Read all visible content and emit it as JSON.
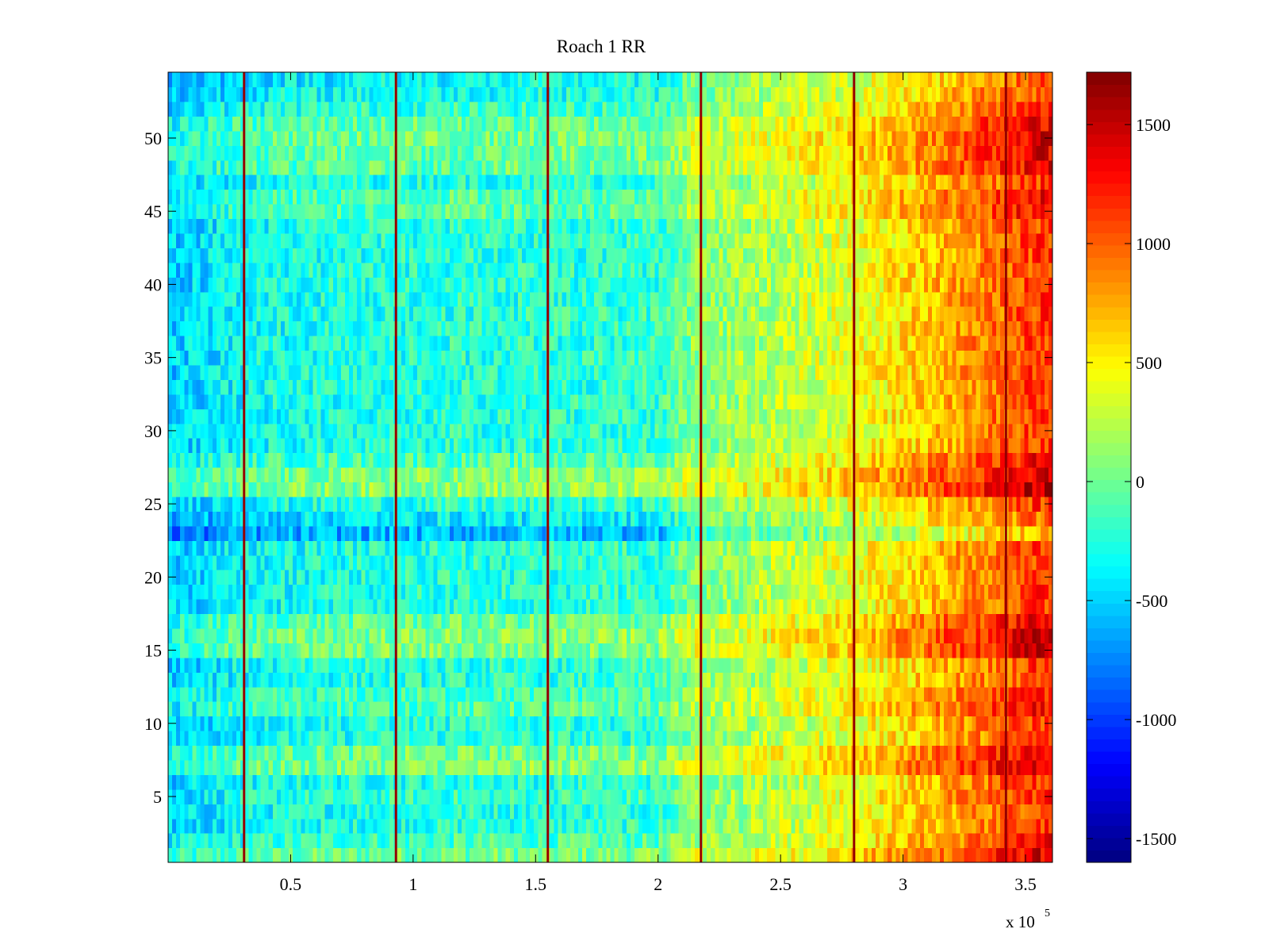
{
  "chart_data": {
    "type": "heatmap",
    "title": "Roach 1 RR",
    "x_multiplier_label": "x 10",
    "x_multiplier_exponent": "5",
    "xlim": [
      0,
      361000
    ],
    "ylim": [
      0.5,
      54.5
    ],
    "x_ticks": [
      50000,
      100000,
      150000,
      200000,
      250000,
      300000,
      350000
    ],
    "x_tick_labels": [
      "0.5",
      "1",
      "1.5",
      "2",
      "2.5",
      "3",
      "3.5"
    ],
    "y_ticks": [
      5,
      10,
      15,
      20,
      25,
      30,
      35,
      40,
      45,
      50
    ],
    "y_tick_labels": [
      "5",
      "10",
      "15",
      "20",
      "25",
      "30",
      "35",
      "40",
      "45",
      "50"
    ],
    "rows": 54,
    "colorbar": {
      "colormap": "jet",
      "clim": [
        -1600,
        1720
      ],
      "ticks": [
        -1500,
        -1000,
        -500,
        0,
        500,
        1000,
        1500
      ],
      "tick_labels": [
        "-1500",
        "-1000",
        "-500",
        "0",
        "500",
        "1000",
        "1500"
      ]
    },
    "trend_profile": {
      "x": [
        0,
        30000,
        60000,
        100000,
        150000,
        200000,
        218000,
        250000,
        280000,
        310000,
        340000,
        361000
      ],
      "value": [
        -520,
        -350,
        -280,
        -240,
        -230,
        -200,
        150,
        330,
        480,
        700,
        900,
        1050
      ]
    },
    "row_offsets": {
      "rows": [
        1,
        2,
        5,
        7,
        8,
        11,
        12,
        15,
        16,
        17,
        23,
        24,
        26,
        27,
        28,
        45,
        46,
        48,
        49,
        50,
        51,
        52,
        53,
        54
      ],
      "value": [
        250,
        100,
        50,
        300,
        250,
        150,
        100,
        280,
        300,
        220,
        -350,
        -150,
        350,
        300,
        150,
        150,
        150,
        200,
        220,
        250,
        200,
        50,
        -50,
        -100
      ]
    },
    "vertical_stripes": {
      "x": [
        31000,
        93000,
        155000,
        217500,
        280000,
        342000
      ],
      "value": 1650
    }
  }
}
